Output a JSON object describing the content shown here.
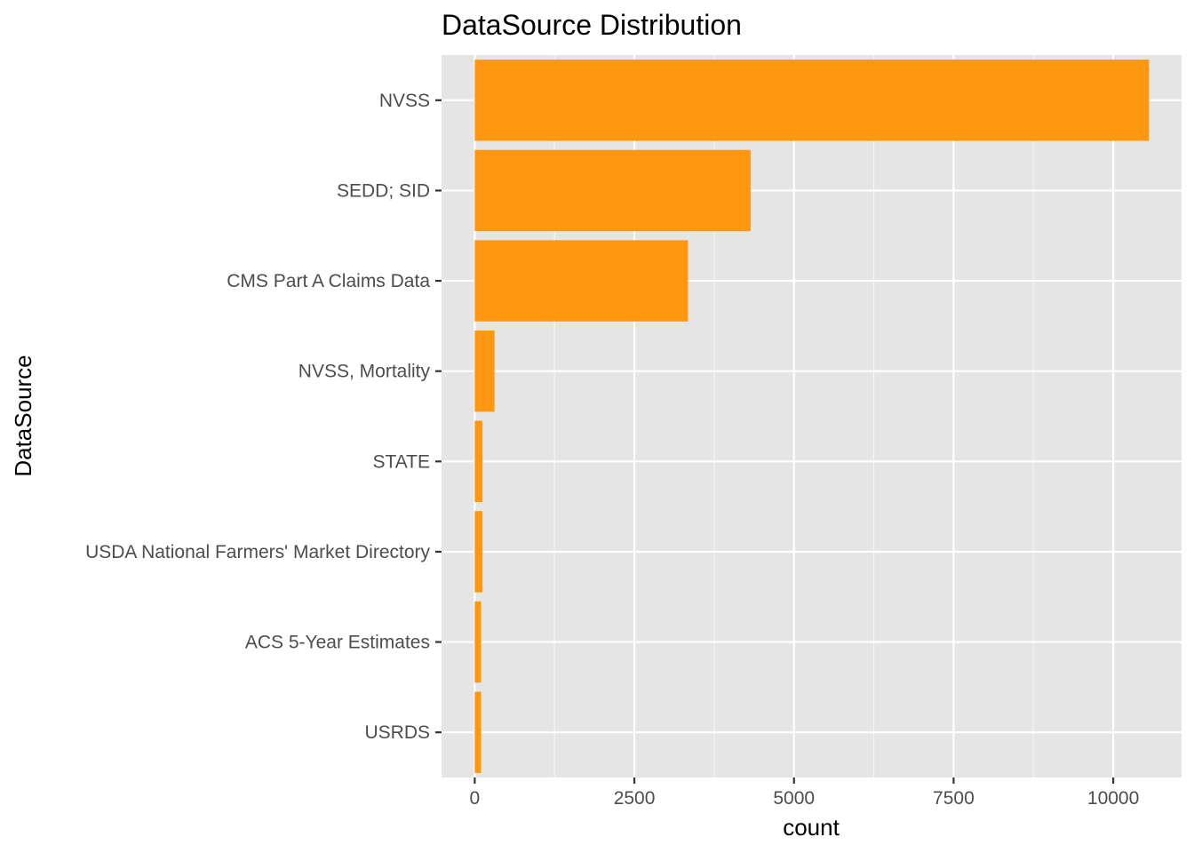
{
  "chart_data": {
    "type": "bar",
    "orientation": "horizontal",
    "title": "DataSource Distribution",
    "xlabel": "count",
    "ylabel": "DataSource",
    "categories": [
      "NVSS",
      "SEDD; SID",
      "CMS Part A Claims Data",
      "NVSS, Mortality",
      "STATE",
      "USDA National Farmers' Market Directory",
      "ACS 5-Year Estimates",
      "USRDS"
    ],
    "values": [
      10560,
      4320,
      3340,
      310,
      120,
      120,
      100,
      100
    ],
    "xlim": [
      -520,
      11070
    ],
    "x_ticks": [
      0,
      2500,
      5000,
      7500,
      10000
    ],
    "x_tick_labels": [
      "0",
      "2500",
      "5000",
      "7500",
      "10000"
    ],
    "grid": true,
    "legend": "none",
    "colors": {
      "bar": "#ff9810",
      "panel": "#e5e5e5",
      "grid_major": "#ffffff",
      "tick_label": "#4d4d4d",
      "tick_mark": "#333333"
    }
  }
}
